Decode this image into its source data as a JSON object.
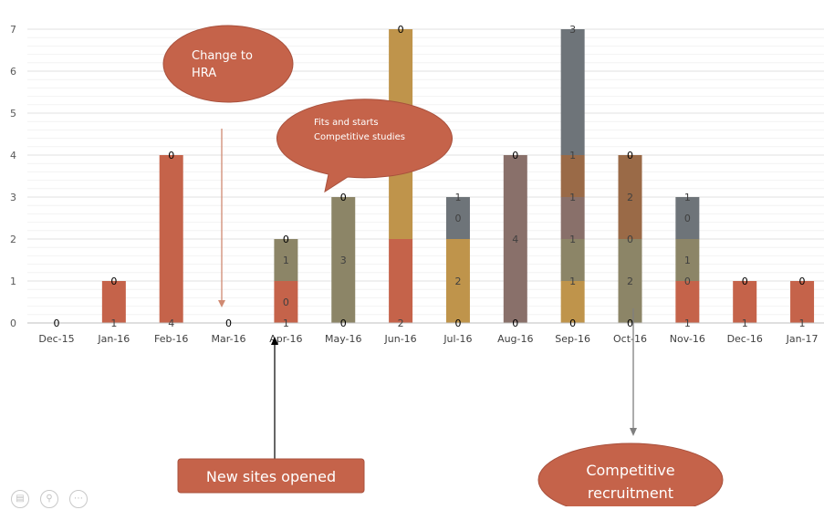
{
  "chart_data": {
    "type": "bar",
    "stacked": true,
    "ylim": [
      0,
      7
    ],
    "yticks": [
      "0",
      "1",
      "2",
      "3",
      "4",
      "5",
      "6",
      "7"
    ],
    "categories": [
      "Dec-15",
      "Jan-16",
      "Feb-16",
      "Mar-16",
      "Apr-16",
      "May-16",
      "Jun-16",
      "Jul-16",
      "Aug-16",
      "Sep-16",
      "Oct-16",
      "Nov-16",
      "Dec-16",
      "Jan-17"
    ],
    "grid": true,
    "months": [
      {
        "label": "Dec-15",
        "segments": [],
        "labels": [
          "0"
        ]
      },
      {
        "label": "Jan-16",
        "segments": [
          {
            "value": 1,
            "color": "#c5634a"
          }
        ],
        "labels": [
          "1",
          "0"
        ]
      },
      {
        "label": "Feb-16",
        "segments": [
          {
            "value": 4,
            "color": "#c5634a"
          }
        ],
        "labels": [
          "4",
          "0"
        ]
      },
      {
        "label": "Mar-16",
        "segments": [],
        "labels": [
          "0"
        ]
      },
      {
        "label": "Apr-16",
        "segments": [
          {
            "value": 1,
            "color": "#c5634a"
          },
          {
            "value": 1,
            "color": "#8c8567"
          }
        ],
        "labels": [
          "1",
          "0",
          "1",
          "0"
        ]
      },
      {
        "label": "May-16",
        "segments": [
          {
            "value": 3,
            "color": "#8c8567"
          }
        ],
        "labels": [
          "0",
          "3",
          "0"
        ]
      },
      {
        "label": "Jun-16",
        "segments": [
          {
            "value": 2,
            "color": "#c5634a"
          },
          {
            "value": 5,
            "color": "#bf944b"
          }
        ],
        "labels": [
          "2",
          "0"
        ]
      },
      {
        "label": "Jul-16",
        "segments": [
          {
            "value": 2,
            "color": "#bf944b"
          },
          {
            "value": 1,
            "color": "#6e7479"
          }
        ],
        "labels": [
          "0",
          "2",
          "0",
          "1"
        ]
      },
      {
        "label": "Aug-16",
        "segments": [
          {
            "value": 4,
            "color": "#89706a"
          }
        ],
        "labels": [
          "0",
          "4",
          "0"
        ]
      },
      {
        "label": "Sep-16",
        "segments": [
          {
            "value": 1,
            "color": "#bf944b"
          },
          {
            "value": 1,
            "color": "#8c8567"
          },
          {
            "value": 1,
            "color": "#89706a"
          },
          {
            "value": 1,
            "color": "#9a6a47"
          },
          {
            "value": 3,
            "color": "#6e7479"
          }
        ],
        "labels": [
          "0",
          "1",
          "1",
          "1",
          "1",
          "3"
        ]
      },
      {
        "label": "Oct-16",
        "segments": [
          {
            "value": 2,
            "color": "#8c8567"
          },
          {
            "value": 2,
            "color": "#9a6a47"
          }
        ],
        "labels": [
          "0",
          "2",
          "0",
          "2",
          "0"
        ]
      },
      {
        "label": "Nov-16",
        "segments": [
          {
            "value": 1,
            "color": "#c5634a"
          },
          {
            "value": 1,
            "color": "#8c8567"
          },
          {
            "value": 1,
            "color": "#6e7479"
          }
        ],
        "labels": [
          "1",
          "0",
          "1",
          "0",
          "1"
        ]
      },
      {
        "label": "Dec-16",
        "segments": [
          {
            "value": 1,
            "color": "#c5634a"
          }
        ],
        "labels": [
          "1",
          "0"
        ]
      },
      {
        "label": "Jan-17",
        "segments": [
          {
            "value": 1,
            "color": "#c5634a"
          }
        ],
        "labels": [
          "1",
          "0"
        ]
      }
    ],
    "annotations": [
      {
        "id": "change-to-hra",
        "text": "Change to HRA",
        "target": "Mar-16"
      },
      {
        "id": "fits-and-starts",
        "text": "Fits and starts Competitive studies",
        "target": "May-16"
      },
      {
        "id": "new-sites-opened",
        "text": "New sites opened",
        "target": "Apr-16"
      },
      {
        "id": "competitive-recruitment",
        "text": "Competitive recruitment",
        "target": "Oct-16"
      }
    ]
  },
  "annotations": {
    "hra_line1": "Change to",
    "hra_line2": "HRA",
    "fits_line1": "Fits and starts",
    "fits_line2": "Competitive studies",
    "new_sites": "New sites opened",
    "competitive_line1": "Competitive",
    "competitive_line2": "recruitment"
  },
  "colors": {
    "accent": "#c5634a",
    "axis": "#bfbfbf",
    "grid": "#ebebeb"
  },
  "controls": [
    {
      "name": "first-page-control-icon",
      "symbol": "▤"
    },
    {
      "name": "zoom-control-icon",
      "symbol": "⚲"
    },
    {
      "name": "more-control-icon",
      "symbol": "⋯"
    }
  ]
}
